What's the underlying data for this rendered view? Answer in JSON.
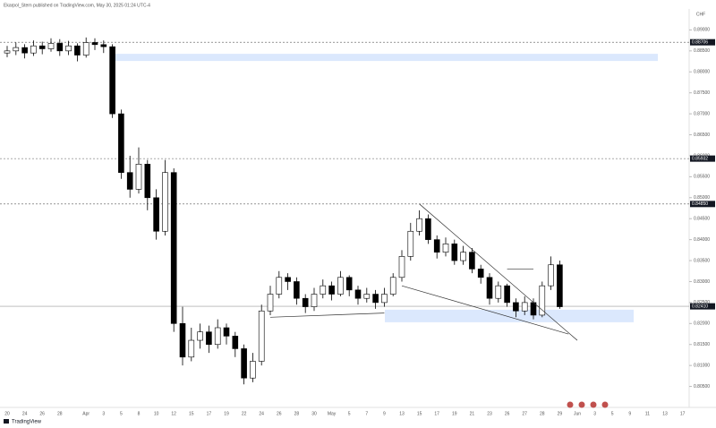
{
  "header": "Ekarpol_Stern published on TradingView.com, May 30, 2025 01:24 UTC-4",
  "footer": "TradingView",
  "chart_data": {
    "type": "candlestick",
    "currency": "CHF",
    "up_color": "#ffffff",
    "down_color": "#000000",
    "categories": [
      "20",
      null,
      "24",
      null,
      "26",
      null,
      "28",
      null,
      null,
      "Apr",
      null,
      "3",
      null,
      "5",
      null,
      "8",
      null,
      "10",
      null,
      "12",
      null,
      "15",
      null,
      "17",
      null,
      "19",
      null,
      "22",
      null,
      "24",
      null,
      "26",
      null,
      "28",
      null,
      "30",
      null,
      "May",
      null,
      "5",
      null,
      "7",
      null,
      "9",
      null,
      "13",
      null,
      "15",
      null,
      "17",
      null,
      "19",
      null,
      "21",
      null,
      "23",
      null,
      "26",
      null,
      "27",
      null,
      "28",
      null,
      "29",
      null,
      "Jun",
      null,
      "3",
      null,
      "5",
      null,
      "9",
      null,
      "11",
      null,
      "13",
      null,
      "17"
    ],
    "open": [
      0.8845,
      0.885,
      0.8858,
      0.8845,
      0.8862,
      0.8855,
      0.8868,
      0.885,
      0.8862,
      0.884,
      0.887,
      0.8865,
      0.886,
      0.87,
      0.856,
      0.852,
      0.858,
      0.85,
      0.842,
      0.856,
      0.82,
      0.812,
      0.816,
      0.818,
      0.815,
      0.819,
      0.817,
      0.814,
      0.807,
      0.811,
      0.823,
      0.827,
      0.831,
      0.83,
      0.826,
      0.824,
      0.827,
      0.829,
      0.827,
      0.831,
      0.828,
      0.826,
      0.827,
      0.825,
      0.827,
      0.831,
      0.836,
      0.842,
      0.845,
      0.84,
      0.837,
      0.839,
      0.835,
      0.837,
      0.833,
      0.831,
      0.826,
      0.829,
      0.825,
      0.823,
      0.825,
      0.822,
      0.829,
      0.834,
      null,
      null,
      null,
      null,
      null,
      null,
      null,
      null,
      null,
      null,
      null,
      null,
      null,
      null
    ],
    "high": [
      0.8862,
      0.887,
      0.8866,
      0.8875,
      0.8872,
      0.888,
      0.8878,
      0.8874,
      0.8868,
      0.8882,
      0.888,
      0.8875,
      0.8866,
      0.871,
      0.86,
      0.862,
      0.859,
      0.852,
      0.859,
      0.857,
      0.824,
      0.819,
      0.82,
      0.8195,
      0.821,
      0.82,
      0.818,
      0.815,
      0.813,
      0.8245,
      0.829,
      0.8325,
      0.832,
      0.831,
      0.827,
      0.8285,
      0.8305,
      0.83,
      0.8325,
      0.8315,
      0.829,
      0.8285,
      0.828,
      0.8285,
      0.832,
      0.8375,
      0.844,
      0.847,
      0.846,
      0.841,
      0.8405,
      0.84,
      0.8385,
      0.838,
      0.834,
      0.832,
      0.83,
      0.8295,
      0.826,
      0.8265,
      0.826,
      0.83,
      0.836,
      0.835,
      null,
      null,
      null,
      null,
      null,
      null,
      null,
      null,
      null,
      null,
      null,
      null,
      null,
      null
    ],
    "low": [
      0.8835,
      0.884,
      0.8832,
      0.8838,
      0.8842,
      0.8848,
      0.8838,
      0.884,
      0.8825,
      0.8834,
      0.8852,
      0.8845,
      0.869,
      0.8545,
      0.85,
      0.851,
      0.847,
      0.84,
      0.841,
      0.818,
      0.81,
      0.811,
      0.814,
      0.813,
      0.814,
      0.815,
      0.812,
      0.8055,
      0.806,
      0.81,
      0.822,
      0.826,
      0.828,
      0.8245,
      0.8225,
      0.823,
      0.826,
      0.8255,
      0.8265,
      0.8265,
      0.8245,
      0.825,
      0.8235,
      0.824,
      0.8265,
      0.83,
      0.835,
      0.841,
      0.839,
      0.8355,
      0.836,
      0.834,
      0.834,
      0.832,
      0.8295,
      0.8245,
      0.825,
      0.824,
      0.8215,
      0.822,
      0.821,
      0.8215,
      0.828,
      0.8235,
      null,
      null,
      null,
      null,
      null,
      null,
      null,
      null,
      null,
      null,
      null,
      null,
      null,
      null
    ],
    "close": [
      0.885,
      0.8858,
      0.8845,
      0.8862,
      0.8855,
      0.8868,
      0.885,
      0.8862,
      0.884,
      0.887,
      0.8865,
      0.886,
      0.87,
      0.856,
      0.852,
      0.858,
      0.85,
      0.842,
      0.856,
      0.82,
      0.812,
      0.816,
      0.818,
      0.815,
      0.819,
      0.817,
      0.814,
      0.807,
      0.811,
      0.823,
      0.827,
      0.831,
      0.83,
      0.826,
      0.824,
      0.827,
      0.829,
      0.827,
      0.831,
      0.828,
      0.826,
      0.827,
      0.825,
      0.827,
      0.831,
      0.836,
      0.842,
      0.845,
      0.84,
      0.837,
      0.839,
      0.835,
      0.837,
      0.833,
      0.831,
      0.826,
      0.829,
      0.825,
      0.823,
      0.825,
      0.822,
      0.829,
      0.834,
      0.824,
      null,
      null,
      null,
      null,
      null,
      null,
      null,
      null,
      null,
      null,
      null,
      null,
      null,
      null
    ],
    "ylim": [
      0.8,
      0.895
    ],
    "yticks": [
      {
        "value": 0.805,
        "label": "0.80500"
      },
      {
        "value": 0.81,
        "label": "0.81000"
      },
      {
        "value": 0.815,
        "label": "0.81500"
      },
      {
        "value": 0.82,
        "label": "0.82000"
      },
      {
        "value": 0.825,
        "label": "0.82500"
      },
      {
        "value": 0.83,
        "label": "0.83000"
      },
      {
        "value": 0.835,
        "label": "0.83500"
      },
      {
        "value": 0.84,
        "label": "0.84000"
      },
      {
        "value": 0.845,
        "label": "0.84500"
      },
      {
        "value": 0.85,
        "label": "0.85000"
      },
      {
        "value": 0.855,
        "label": "0.85500"
      },
      {
        "value": 0.86,
        "label": "0.86000"
      },
      {
        "value": 0.865,
        "label": "0.86500"
      },
      {
        "value": 0.87,
        "label": "0.87000"
      },
      {
        "value": 0.875,
        "label": "0.87500"
      },
      {
        "value": 0.88,
        "label": "0.88000"
      },
      {
        "value": 0.885,
        "label": "0.88500"
      },
      {
        "value": 0.89,
        "label": "0.89000"
      }
    ],
    "levels": [
      {
        "value": 0.88706,
        "label": "0.88706",
        "color": "#555555",
        "dash": true
      },
      {
        "value": 0.85932,
        "label": "0.85932",
        "color": "#555555",
        "dash": true
      },
      {
        "value": 0.8485,
        "label": "0.84850",
        "color": "#555555",
        "dash": true
      },
      {
        "value": 0.8241,
        "label": "0.82410",
        "color": "#999999",
        "dash": false
      }
    ],
    "zones": [
      {
        "low": 0.8826,
        "high": 0.8843
      },
      {
        "low": 0.8203,
        "high": 0.8233
      }
    ],
    "zone_color": "#dbe8fd",
    "trendlines": [
      {
        "x": [
          47,
          65
        ],
        "y": [
          0.8485,
          0.816
        ]
      },
      {
        "x": [
          45,
          64
        ],
        "y": [
          0.829,
          0.8175
        ]
      },
      {
        "x": [
          30,
          43
        ],
        "y": [
          0.8215,
          0.8225
        ]
      },
      {
        "x": [
          57,
          60
        ],
        "y": [
          0.833,
          0.833
        ]
      }
    ]
  }
}
